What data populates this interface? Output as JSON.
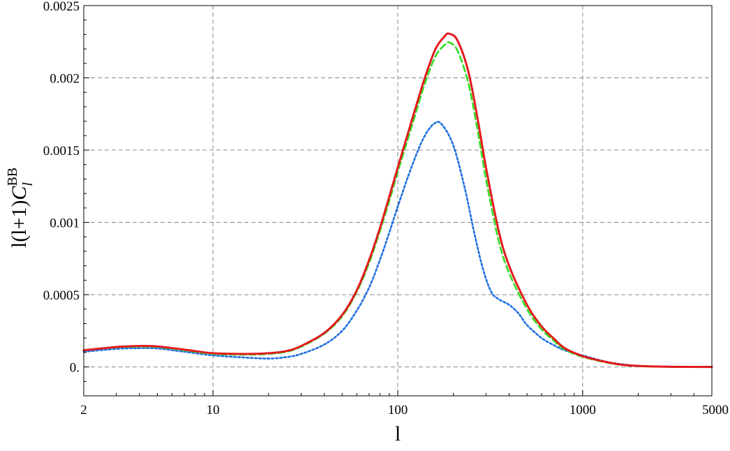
{
  "chart_data": {
    "type": "line",
    "xlabel": "l",
    "ylabel": {
      "prefix": "l(l+1)",
      "main": "C",
      "subscript": "l",
      "superscript": "BB"
    },
    "xscale": "log",
    "xlim": [
      2,
      5000
    ],
    "ylim": [
      -0.0002,
      0.0025
    ],
    "x_ticks": [
      {
        "value": 2,
        "label": "2"
      },
      {
        "value": 10,
        "label": "10"
      },
      {
        "value": 100,
        "label": "100"
      },
      {
        "value": 1000,
        "label": "1000"
      },
      {
        "value": 5000,
        "label": "5000"
      }
    ],
    "y_ticks": [
      {
        "value": 0,
        "label": "0."
      },
      {
        "value": 0.0005,
        "label": "0.0005"
      },
      {
        "value": 0.001,
        "label": "0.001"
      },
      {
        "value": 0.0015,
        "label": "0.0015"
      },
      {
        "value": 0.002,
        "label": "0.002"
      },
      {
        "value": 0.0025,
        "label": "0.0025"
      }
    ],
    "grid": true,
    "legend": "none",
    "series": [
      {
        "color": "#1f6fe0",
        "style": "dotted",
        "points": [
          [
            2,
            0.000105
          ],
          [
            3,
            0.000125
          ],
          [
            4,
            0.00013
          ],
          [
            5,
            0.000128
          ],
          [
            7,
            0.000105
          ],
          [
            10,
            8e-05
          ],
          [
            15,
            6.5e-05
          ],
          [
            20,
            5.8e-05
          ],
          [
            25,
            6.8e-05
          ],
          [
            30,
            9e-05
          ],
          [
            40,
            0.000155
          ],
          [
            50,
            0.00025
          ],
          [
            60,
            0.00039
          ],
          [
            70,
            0.00055
          ],
          [
            80,
            0.00074
          ],
          [
            90,
            0.00093
          ],
          [
            100,
            0.00111
          ],
          [
            120,
            0.0014
          ],
          [
            140,
            0.0016
          ],
          [
            160,
            0.00169
          ],
          [
            175,
            0.00167
          ],
          [
            200,
            0.00153
          ],
          [
            230,
            0.00124
          ],
          [
            260,
            0.00092
          ],
          [
            290,
            0.00067
          ],
          [
            320,
            0.00052
          ],
          [
            350,
            0.00047
          ],
          [
            400,
            0.00043
          ],
          [
            450,
            0.00037
          ],
          [
            500,
            0.00029
          ],
          [
            600,
            0.0002
          ],
          [
            700,
            0.00015
          ],
          [
            800,
            0.000115
          ],
          [
            1000,
            8e-05
          ],
          [
            1300,
            4e-05
          ],
          [
            1600,
            2e-05
          ],
          [
            2000,
            8e-06
          ],
          [
            3000,
            1e-06
          ],
          [
            5000,
            0.0
          ]
        ]
      },
      {
        "color": "#33dd22",
        "style": "dashed",
        "points": [
          [
            2,
            0.000115
          ],
          [
            3,
            0.000135
          ],
          [
            4,
            0.00014
          ],
          [
            5,
            0.000138
          ],
          [
            7,
            0.000115
          ],
          [
            10,
            9e-05
          ],
          [
            15,
            8.5e-05
          ],
          [
            20,
            9e-05
          ],
          [
            25,
            0.000105
          ],
          [
            30,
            0.00014
          ],
          [
            40,
            0.00023
          ],
          [
            50,
            0.00035
          ],
          [
            60,
            0.00052
          ],
          [
            70,
            0.00072
          ],
          [
            80,
            0.00094
          ],
          [
            90,
            0.00115
          ],
          [
            100,
            0.00135
          ],
          [
            120,
            0.00168
          ],
          [
            140,
            0.00196
          ],
          [
            160,
            0.00215
          ],
          [
            180,
            0.00223
          ],
          [
            190,
            0.002245
          ],
          [
            210,
            0.00219
          ],
          [
            240,
            0.00197
          ],
          [
            270,
            0.00164
          ],
          [
            300,
            0.0013
          ],
          [
            350,
            0.00088
          ],
          [
            400,
            0.00065
          ],
          [
            500,
            0.0004
          ],
          [
            600,
            0.00026
          ],
          [
            700,
            0.00018
          ],
          [
            800,
            0.00012
          ],
          [
            1000,
            7e-05
          ],
          [
            1300,
            3.5e-05
          ],
          [
            1600,
            1.5e-05
          ],
          [
            2000,
            6e-06
          ],
          [
            3000,
            1e-06
          ],
          [
            5000,
            0.0
          ]
        ]
      },
      {
        "color": "#e31a1c",
        "style": "solid",
        "points": [
          [
            2,
            0.000115
          ],
          [
            3,
            0.000138
          ],
          [
            4,
            0.000145
          ],
          [
            5,
            0.000142
          ],
          [
            7,
            0.00012
          ],
          [
            10,
            9.5e-05
          ],
          [
            15,
            9e-05
          ],
          [
            20,
            9.5e-05
          ],
          [
            25,
            0.00011
          ],
          [
            30,
            0.000145
          ],
          [
            40,
            0.000235
          ],
          [
            50,
            0.00036
          ],
          [
            60,
            0.00053
          ],
          [
            70,
            0.00074
          ],
          [
            80,
            0.00096
          ],
          [
            90,
            0.00118
          ],
          [
            100,
            0.00138
          ],
          [
            120,
            0.00172
          ],
          [
            140,
            0.002
          ],
          [
            160,
            0.0022
          ],
          [
            180,
            0.00229
          ],
          [
            190,
            0.002305
          ],
          [
            210,
            0.00226
          ],
          [
            240,
            0.00205
          ],
          [
            270,
            0.00172
          ],
          [
            300,
            0.00138
          ],
          [
            350,
            0.00095
          ],
          [
            400,
            0.0007
          ],
          [
            500,
            0.00043
          ],
          [
            600,
            0.00028
          ],
          [
            700,
            0.000195
          ],
          [
            800,
            0.00013
          ],
          [
            1000,
            7.5e-05
          ],
          [
            1300,
            3.8e-05
          ],
          [
            1600,
            1.7e-05
          ],
          [
            2000,
            7e-06
          ],
          [
            3000,
            1e-06
          ],
          [
            5000,
            0.0
          ]
        ]
      }
    ]
  }
}
